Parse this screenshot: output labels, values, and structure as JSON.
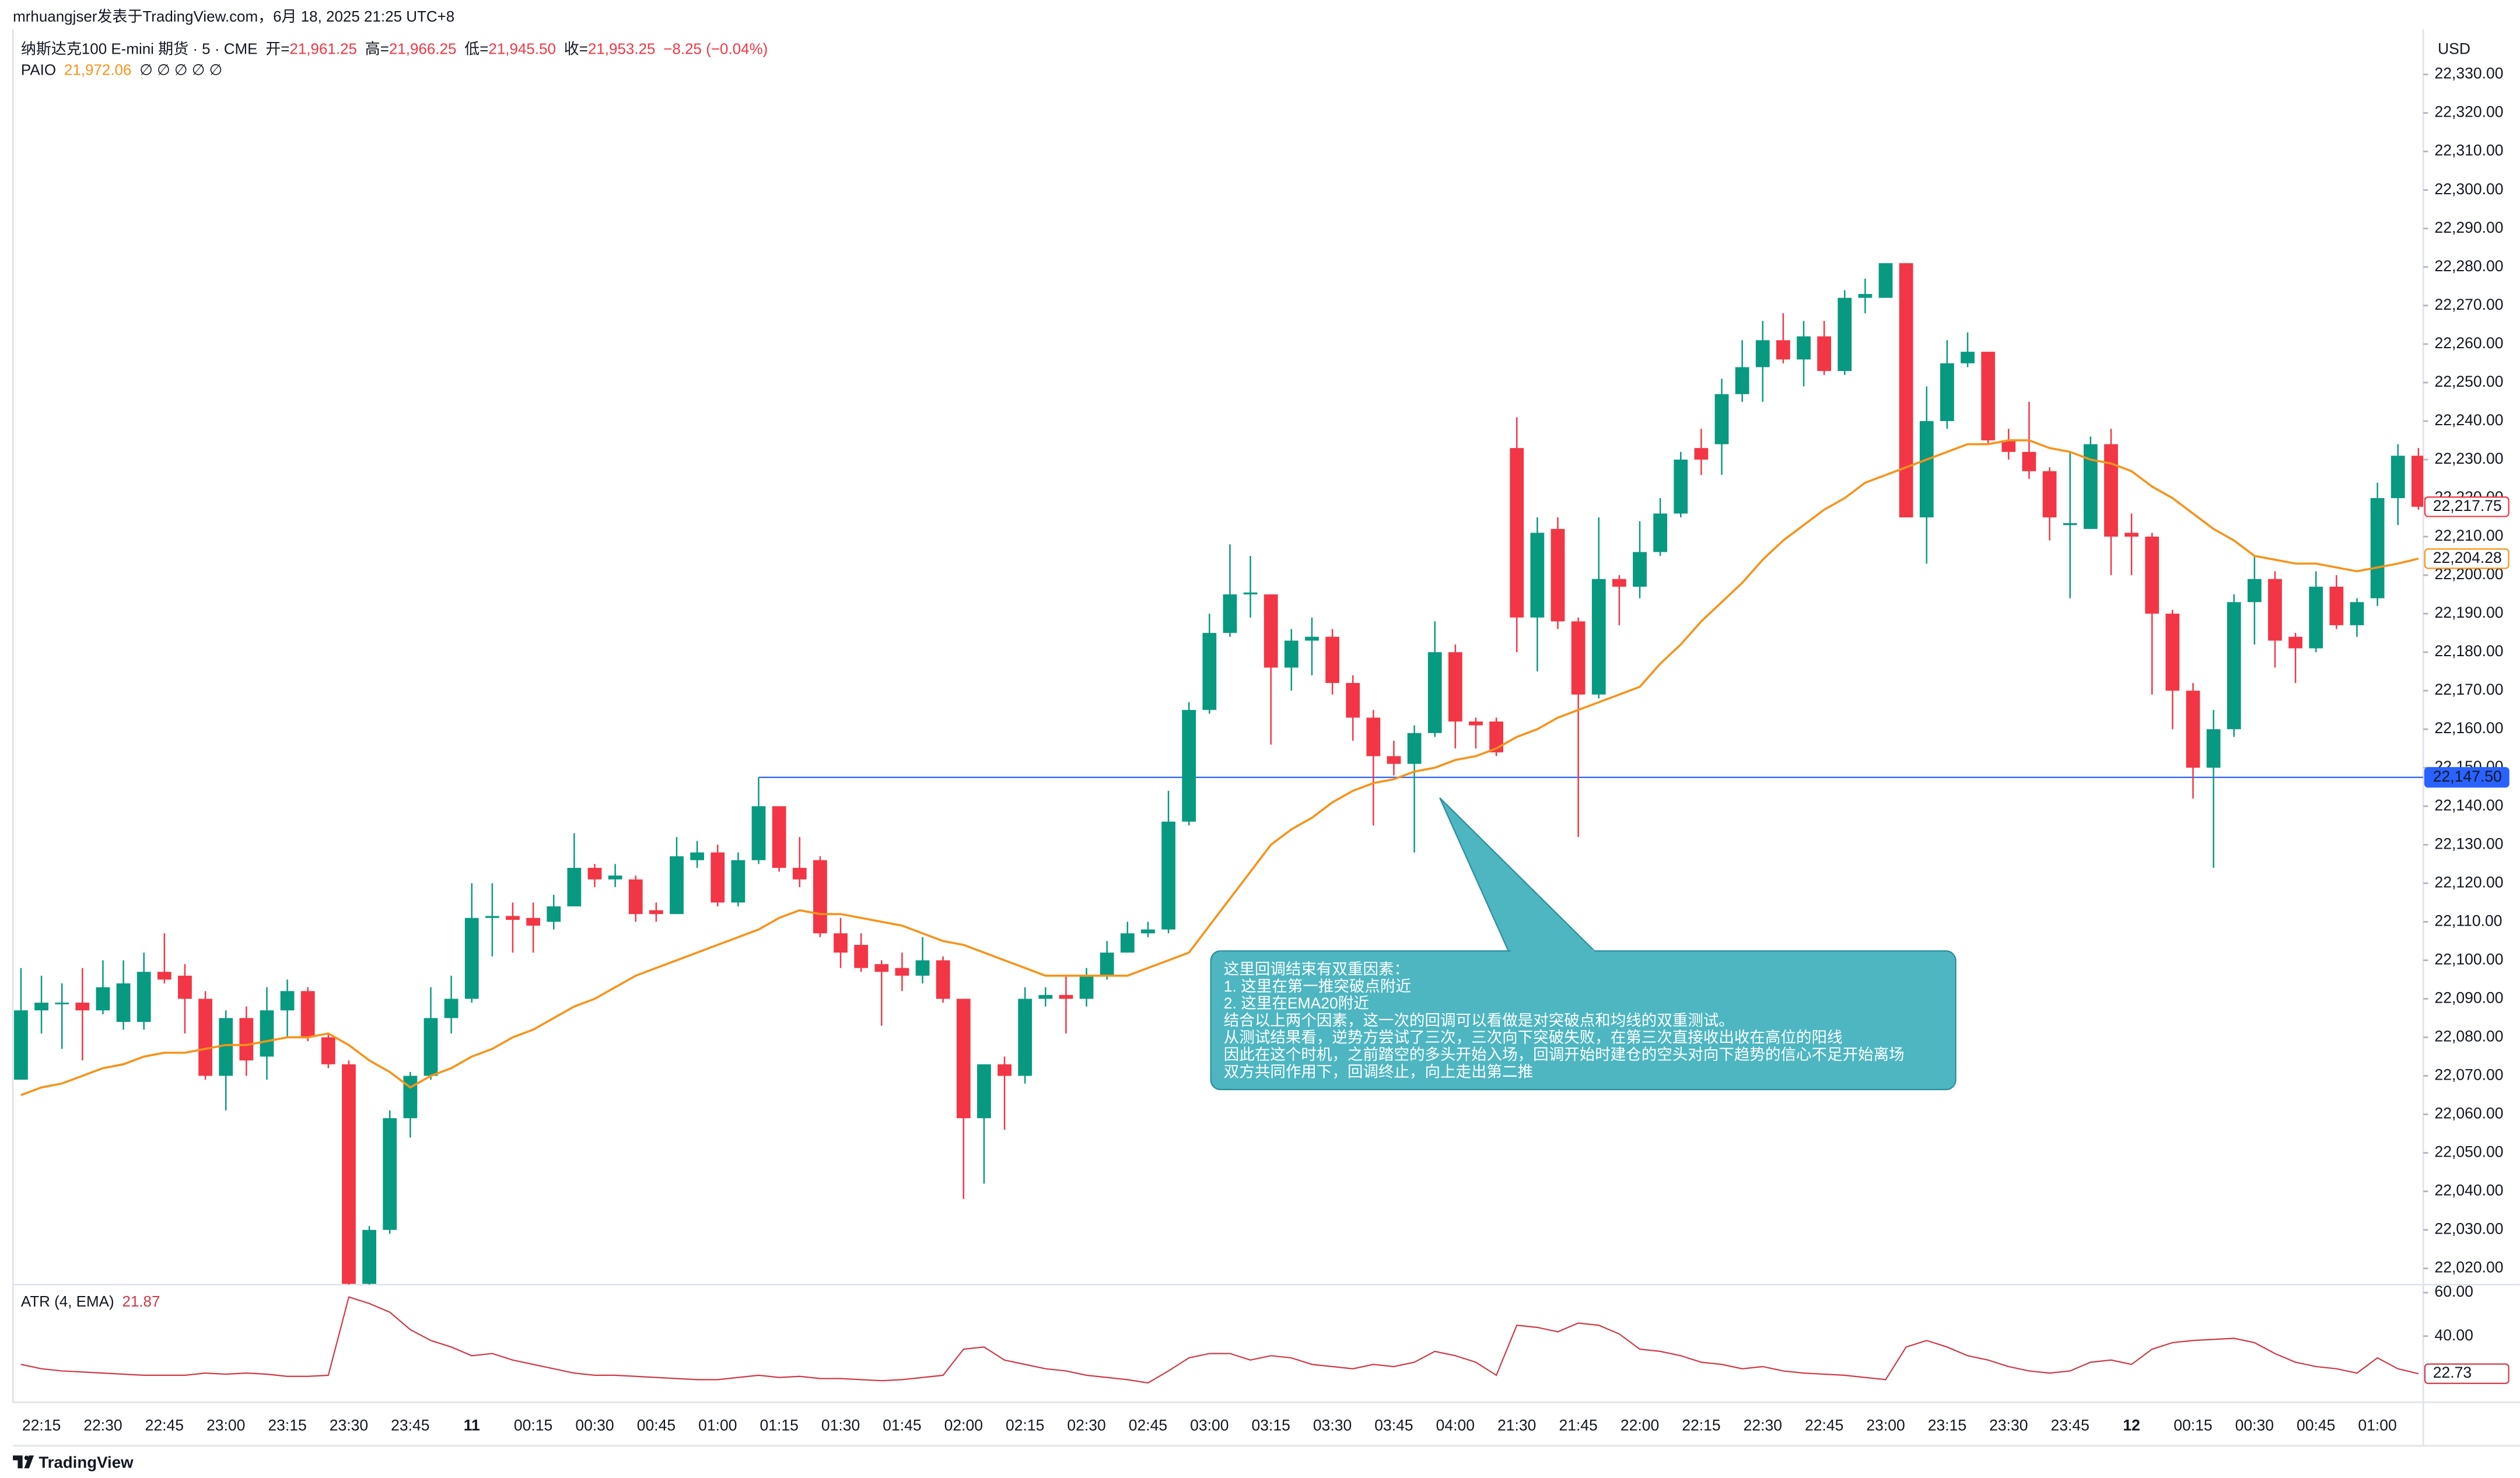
{
  "header": "mrhuangjser发表于TradingView.com，6月 18, 2025 21:25 UTC+8",
  "footer": "TradingView",
  "chart_data": [
    {
      "type": "candlestick",
      "title": "纳斯达克100 E-mini 期货 · 5 · CME",
      "ohlc": [
        {
          "label": "开=",
          "value": "21,961.25"
        },
        {
          "label": "高=",
          "value": "21,966.25"
        },
        {
          "label": "低=",
          "value": "21,945.50"
        },
        {
          "label": "收=",
          "value": "21,953.25"
        }
      ],
      "change": "−8.25 (−0.04%)",
      "currency": "USD",
      "categories": [
        null,
        "22:15",
        null,
        null,
        "22:30",
        null,
        null,
        "22:45",
        null,
        null,
        "23:00",
        null,
        null,
        "23:15",
        null,
        null,
        "23:30",
        null,
        null,
        "23:45",
        null,
        null,
        "11",
        null,
        null,
        "00:15",
        null,
        null,
        "00:30",
        null,
        null,
        "00:45",
        null,
        null,
        "01:00",
        null,
        null,
        "01:15",
        null,
        null,
        "01:30",
        null,
        null,
        "01:45",
        null,
        null,
        "02:00",
        null,
        null,
        "02:15",
        null,
        null,
        "02:30",
        null,
        null,
        "02:45",
        null,
        null,
        "03:00",
        null,
        null,
        "03:15",
        null,
        null,
        "03:30",
        null,
        null,
        "03:45",
        null,
        null,
        "04:00",
        null,
        null,
        "21:30",
        null,
        null,
        "21:45",
        null,
        null,
        "22:00",
        null,
        null,
        "22:15",
        null,
        null,
        "22:30",
        null,
        null,
        "22:45",
        null,
        null,
        "23:00",
        null,
        null,
        "23:15",
        null,
        null,
        "23:30",
        null,
        null,
        "23:45",
        null,
        null,
        "12",
        null,
        null,
        "00:15",
        null,
        null,
        "00:30",
        null,
        null,
        "00:45",
        null,
        null,
        "01:00",
        null,
        null
      ],
      "series": [
        {
          "up_color": "#089981",
          "down_color": "#f23645",
          "last_label": "22,217.75",
          "open": [
            22069,
            22087,
            22089,
            22089,
            22087,
            22084,
            22084,
            22097,
            22096,
            22090,
            22070,
            22085,
            22075,
            22087,
            22092,
            22080,
            22073,
            22016,
            22030,
            22059,
            22070,
            22085,
            22090,
            22111,
            22111.5,
            22111,
            22110,
            22114,
            22124,
            22121,
            22121,
            22113,
            22112,
            22126,
            22128,
            22115,
            22126,
            22140,
            22124,
            22126,
            22107,
            22104,
            22099,
            22098,
            22096,
            22100,
            22090,
            22059,
            22073,
            22070,
            22090,
            22091,
            22090,
            22096,
            22102,
            22107,
            22108,
            22136,
            22165,
            22185,
            22195,
            22195,
            22176,
            22183,
            22184,
            22172,
            22163,
            22153,
            22151,
            22159,
            22180,
            22162,
            22162,
            22233,
            22189,
            22212,
            22188,
            22169,
            22199,
            22197,
            22206,
            22216,
            22233,
            22234,
            22247,
            22254,
            22261,
            22256,
            22262,
            22253,
            22272,
            22272,
            22281,
            22215,
            22240,
            22255,
            22258,
            22235,
            22232,
            22227,
            22213,
            22212,
            22234,
            22211,
            22210,
            22190,
            22170,
            22150,
            22160,
            22193,
            22199,
            22184,
            22181,
            22197,
            22187,
            22194,
            22220,
            22231
          ],
          "high": [
            22098,
            22096,
            22094,
            22098,
            22100,
            22100,
            22102,
            22107,
            22099,
            22092,
            22087,
            22088,
            22093,
            22095,
            22093,
            22081,
            22074,
            22031,
            22061,
            22071,
            22093,
            22096,
            22120,
            22120,
            22115,
            22115,
            22117,
            22133,
            22125,
            22125,
            22122,
            22115,
            22132,
            22131,
            22130,
            22128,
            22147.5,
            22140,
            22132,
            22127,
            22111,
            22107,
            22100,
            22102,
            22106,
            22101,
            22090,
            22073,
            22075,
            22093,
            22093,
            22096,
            22098,
            22105,
            22110,
            22110,
            22144,
            22167,
            22190,
            22208,
            22205,
            22195,
            22186,
            22189,
            22186,
            22174,
            22165,
            22157,
            22161,
            22188,
            22182,
            22163,
            22163,
            22241,
            22215,
            22215,
            22189,
            22215,
            22200,
            22214,
            22220,
            22232,
            22238,
            22251,
            22261,
            22266,
            22268,
            22266,
            22266,
            22274,
            22277,
            22281,
            22281,
            22249,
            22261,
            22263,
            22258,
            22238,
            22245,
            22228,
            22232,
            22236,
            22238,
            22216,
            22211,
            22191,
            22172,
            22165,
            22195,
            22205,
            22201,
            22185,
            22201,
            22200,
            22194,
            22224,
            22234,
            22233
          ],
          "low": [
            22069,
            22081,
            22077,
            22074,
            22086,
            22082,
            22082,
            22094,
            22081,
            22069,
            22061,
            22070,
            22069,
            22080,
            22079,
            22072,
            22015,
            22015,
            22029,
            22054,
            22069,
            22081,
            22089,
            22101,
            22102,
            22102,
            22108,
            22114,
            22119,
            22119,
            22110,
            22110,
            22112,
            22124,
            22114,
            22114,
            22125,
            22123,
            22119,
            22106,
            22098,
            22097,
            22083,
            22092,
            22094,
            22089,
            22038,
            22042,
            22056,
            22068,
            22088,
            22081,
            22088,
            22095,
            22102,
            22106,
            22107,
            22135,
            22164,
            22184,
            22189,
            22156,
            22170,
            22174,
            22169,
            22157,
            22135,
            22148,
            22128,
            22158,
            22155,
            22155,
            22153,
            22180,
            22175,
            22186,
            22132,
            22168,
            22187,
            22194,
            22205,
            22215,
            22226,
            22226,
            22245,
            22245,
            22255,
            22249,
            22252,
            22252,
            22268,
            22272,
            22215,
            22203,
            22238,
            22254,
            22234,
            22230,
            22225,
            22209,
            22194,
            22212,
            22200,
            22200,
            22169,
            22160,
            22142,
            22124,
            22158,
            22182,
            22176,
            22172,
            22180,
            22186,
            22184,
            22192,
            22213,
            22217
          ],
          "close": [
            22087,
            22089,
            22089,
            22087,
            22093,
            22094,
            22097,
            22095,
            22090,
            22070,
            22085,
            22074,
            22087,
            22092,
            22080,
            22073,
            22016,
            22030,
            22059,
            22070,
            22085,
            22090,
            22111,
            22111.5,
            22110.5,
            22109,
            22114,
            22124,
            22121,
            22122,
            22112,
            22112,
            22127,
            22128,
            22115,
            22126,
            22140,
            22124,
            22121,
            22107,
            22102,
            22098,
            22097,
            22096,
            22100,
            22090,
            22059,
            22073,
            22070,
            22090,
            22091,
            22090,
            22096,
            22102,
            22107,
            22108,
            22136,
            22165,
            22185,
            22195,
            22195.5,
            22176,
            22183,
            22184,
            22172,
            22163,
            22153,
            22151,
            22159,
            22180,
            22162,
            22161,
            22154,
            22189,
            22211,
            22188,
            22169,
            22199,
            22197,
            22206,
            22216,
            22230,
            22230,
            22247,
            22254,
            22261,
            22256,
            22262,
            22253,
            22272,
            22273,
            22281,
            22215,
            22240,
            22255,
            22258,
            22235,
            22232,
            22227,
            22215,
            22213.5,
            22234,
            22210,
            22210,
            22190,
            22170,
            22150,
            22160,
            22193,
            22199,
            22183,
            22181,
            22197,
            22187,
            22193,
            22220,
            22231,
            22217.75
          ]
        }
      ],
      "overlays": [
        {
          "type": "line",
          "name": "PAIO",
          "legend_value": "21,972.06",
          "inputs": "∅ ∅ ∅ ∅ ∅",
          "color": "#f7931a",
          "last_label": "22,204.28",
          "values": [
            22065,
            22067,
            22068,
            22070,
            22072,
            22073,
            22075,
            22076,
            22076,
            22077,
            22078,
            22078,
            22079,
            22080,
            22080,
            22081,
            22078,
            22074,
            22071,
            22067,
            22070,
            22072,
            22075,
            22077,
            22080,
            22082,
            22085,
            22088,
            22090,
            22093,
            22096,
            22098,
            22100,
            22102,
            22104,
            22106,
            22108,
            22111,
            22113,
            22112,
            22112,
            22111,
            22110,
            22109,
            22107,
            22105,
            22104,
            22102,
            22100,
            22098,
            22096,
            22096,
            22096,
            22096,
            22096,
            22098,
            22100,
            22102,
            22109,
            22116,
            22123,
            22130,
            22134,
            22137,
            22141,
            22144,
            22146,
            22147,
            22149,
            22150,
            22152,
            22153,
            22155,
            22158,
            22160,
            22163,
            22165,
            22167,
            22169,
            22171,
            22177,
            22182,
            22188,
            22193,
            22198,
            22204,
            22209,
            22213,
            22217,
            22220,
            22224,
            22226,
            22228,
            22230,
            22232,
            22234,
            22234,
            22235,
            22235,
            22233,
            22232,
            22230,
            22229,
            22227,
            22223,
            22220,
            22216,
            22212,
            22209,
            22205,
            22204,
            22203,
            22203,
            22202,
            22201,
            22202,
            22203,
            22204.28
          ]
        }
      ],
      "hline": {
        "value": 22147.5,
        "label": "22,147.50",
        "color": "#2962ff",
        "start_index": 36
      },
      "annotation": {
        "lines": [
          "这里回调结束有双重因素：",
          "1. 这里在第一推突破点附近",
          "2. 这里在EMA20附近",
          "结合以上两个因素，这一次的回调可以看做是对突破点和均线的双重测试。",
          "从测试结果看，逆势方尝试了三次，三次向下突破失败，在第三次直接收出收在高位的阳线",
          "因此在这个时机，之前踏空的多头开始入场，回调开始时建仓的空头对向下趋势的信心不足开始离场",
          "双方共同作用下，回调终止，向上走出第二推"
        ]
      },
      "ylim": [
        22015.8,
        22341.8
      ],
      "yticks": [
        {
          "value": 22020,
          "label": "22,020.00"
        },
        {
          "value": 22030,
          "label": "22,030.00"
        },
        {
          "value": 22040,
          "label": "22,040.00"
        },
        {
          "value": 22050,
          "label": "22,050.00"
        },
        {
          "value": 22060,
          "label": "22,060.00"
        },
        {
          "value": 22070,
          "label": "22,070.00"
        },
        {
          "value": 22080,
          "label": "22,080.00"
        },
        {
          "value": 22090,
          "label": "22,090.00"
        },
        {
          "value": 22100,
          "label": "22,100.00"
        },
        {
          "value": 22110,
          "label": "22,110.00"
        },
        {
          "value": 22120,
          "label": "22,120.00"
        },
        {
          "value": 22130,
          "label": "22,130.00"
        },
        {
          "value": 22140,
          "label": "22,140.00"
        },
        {
          "value": 22150,
          "label": "22,150.00"
        },
        {
          "value": 22160,
          "label": "22,160.00"
        },
        {
          "value": 22170,
          "label": "22,170.00"
        },
        {
          "value": 22180,
          "label": "22,180.00"
        },
        {
          "value": 22190,
          "label": "22,190.00"
        },
        {
          "value": 22200,
          "label": "22,200.00"
        },
        {
          "value": 22210,
          "label": "22,210.00"
        },
        {
          "value": 22220,
          "label": "22,220.00"
        },
        {
          "value": 22230,
          "label": "22,230.00"
        },
        {
          "value": 22240,
          "label": "22,240.00"
        },
        {
          "value": 22250,
          "label": "22,250.00"
        },
        {
          "value": 22260,
          "label": "22,260.00"
        },
        {
          "value": 22270,
          "label": "22,270.00"
        },
        {
          "value": 22280,
          "label": "22,280.00"
        },
        {
          "value": 22290,
          "label": "22,290.00"
        },
        {
          "value": 22300,
          "label": "22,300.00"
        },
        {
          "value": 22310,
          "label": "22,310.00"
        },
        {
          "value": 22320,
          "label": "22,320.00"
        },
        {
          "value": 22330,
          "label": "22,330.00"
        }
      ]
    },
    {
      "type": "line",
      "name": "ATR (4, EMA)",
      "legend_value": "21.87",
      "color": "#d03a48",
      "last_label": "22.73",
      "values": [
        27,
        25,
        24,
        23.5,
        23,
        22.5,
        22,
        22,
        22,
        23,
        22.5,
        23,
        22.5,
        21.5,
        21.5,
        22,
        58,
        55,
        51,
        43,
        38,
        35,
        31,
        32,
        29,
        27,
        25,
        23,
        22,
        22,
        21.5,
        21,
        20.5,
        20,
        20,
        21,
        22,
        21,
        21.5,
        20.5,
        20.5,
        20,
        19.5,
        20,
        21,
        22,
        34,
        35,
        29,
        27,
        25,
        24,
        22,
        21,
        20,
        18.5,
        24,
        30,
        32,
        32,
        29,
        31,
        30,
        27,
        26,
        25,
        27,
        26,
        28,
        33,
        31,
        28,
        22,
        45,
        44,
        42,
        46,
        45,
        41,
        34,
        33,
        31,
        28,
        27,
        25,
        26,
        24,
        23,
        22.5,
        22,
        21,
        20,
        35,
        38,
        35,
        31,
        29,
        26,
        24,
        23,
        24,
        28,
        29,
        27,
        34,
        37,
        38,
        38.5,
        39,
        37,
        32,
        28,
        26,
        25,
        23,
        30,
        25,
        22.73
      ],
      "ylim": [
        9.6,
        63.7
      ],
      "yticks": [
        {
          "value": 40,
          "label": "40.00"
        },
        {
          "value": 60,
          "label": "60.00"
        }
      ]
    }
  ]
}
